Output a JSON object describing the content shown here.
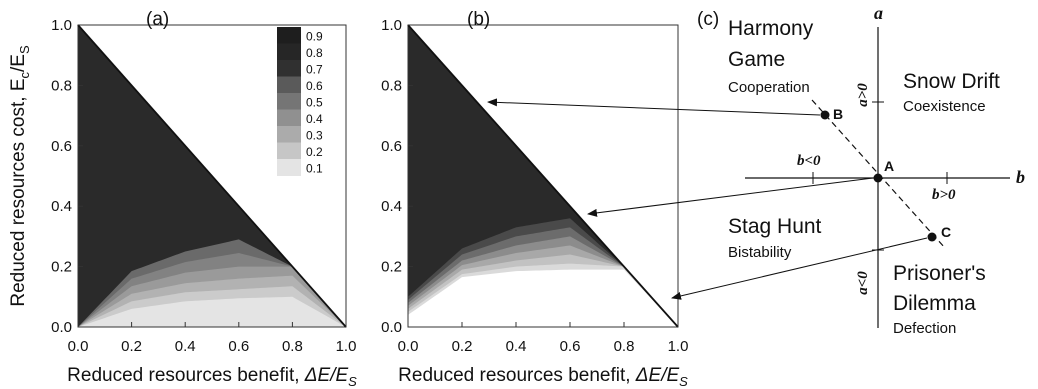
{
  "panels": {
    "a": {
      "label": "(a)"
    },
    "b": {
      "label": "(b)"
    },
    "c": {
      "label": "(c)"
    }
  },
  "axes": {
    "y_label": "Reduced resources cost, E",
    "y_label_sub": "c",
    "y_label_tail": "/E",
    "y_label_tail_sub": "S",
    "x_label_a": "Reduced resources benefit, ",
    "x_label_b": "Reduced resources benefit, ",
    "x_label_math": "ΔE/E",
    "x_label_math_sub": "S",
    "x_ticks": [
      "0.0",
      "0.2",
      "0.4",
      "0.6",
      "0.8",
      "1.0"
    ],
    "y_ticks": [
      "0.0",
      "0.2",
      "0.4",
      "0.6",
      "0.8",
      "1.0"
    ]
  },
  "legend": {
    "levels": [
      "0.9",
      "0.8",
      "0.7",
      "0.6",
      "0.5",
      "0.4",
      "0.3",
      "0.2",
      "0.1"
    ],
    "colors": [
      "#1e1e1e",
      "#262626",
      "#303030",
      "#5a5a5a",
      "#757575",
      "#909090",
      "#ababab",
      "#c6c6c6",
      "#e4e4e4"
    ]
  },
  "chart_data": [
    {
      "type": "heatmap",
      "panel": "(a)",
      "x_range": [
        0,
        1
      ],
      "y_range": [
        0,
        1
      ],
      "domain": "triangle below y = 1 - x",
      "contour_levels": [
        0.1,
        0.2,
        0.3,
        0.4,
        0.5,
        0.6,
        0.7,
        0.8,
        0.9
      ],
      "band_colors": [
        "#e4e4e4",
        "#cbcbcb",
        "#b2b2b2",
        "#9a9a9a",
        "#828282",
        "#6a6a6a",
        "#2a2a2a"
      ],
      "boundary_heights_at_x": {
        "x": [
          0.0,
          0.2,
          0.4,
          0.6,
          0.8,
          1.0
        ],
        "level_0.7": [
          0.0,
          0.185,
          0.25,
          0.29,
          0.2,
          0.0
        ],
        "level_0.6": [
          0.0,
          0.16,
          0.215,
          0.245,
          0.2,
          0.0
        ],
        "level_0.5": [
          0.0,
          0.135,
          0.18,
          0.2,
          0.2,
          0.0
        ],
        "level_0.4": [
          0.0,
          0.11,
          0.145,
          0.16,
          0.17,
          0.0
        ],
        "level_0.3": [
          0.0,
          0.085,
          0.115,
          0.125,
          0.135,
          0.0
        ],
        "level_0.2": [
          0.0,
          0.06,
          0.085,
          0.095,
          0.1,
          0.0
        ],
        "level_0.1": [
          0.0,
          0.035,
          0.05,
          0.06,
          0.065,
          0.0
        ]
      }
    },
    {
      "type": "heatmap",
      "panel": "(b)",
      "x_range": [
        0,
        1
      ],
      "y_range": [
        0,
        1
      ],
      "domain": "triangle below y = 1 - x",
      "contour_levels": [
        0.1,
        0.2,
        0.3,
        0.4,
        0.5,
        0.6,
        0.7,
        0.8,
        0.9
      ],
      "band_colors": [
        "#ffffff",
        "#dadada",
        "#c2c2c2",
        "#a8a8a8",
        "#8c8c8c",
        "#6c6c6c",
        "#4a4a4a",
        "#2a2a2a"
      ],
      "boundary_heights_at_x": {
        "x": [
          0.0,
          0.2,
          0.4,
          0.6,
          0.8,
          1.0
        ],
        "level_0.9": [
          0.1,
          0.26,
          0.33,
          0.36,
          0.2,
          0.0
        ],
        "level_0.8": [
          0.09,
          0.24,
          0.3,
          0.33,
          0.2,
          0.0
        ],
        "level_0.7": [
          0.08,
          0.22,
          0.27,
          0.3,
          0.2,
          0.0
        ],
        "level_0.6": [
          0.07,
          0.205,
          0.245,
          0.27,
          0.2,
          0.0
        ],
        "level_0.5": [
          0.06,
          0.19,
          0.22,
          0.24,
          0.2,
          0.0
        ],
        "level_0.4": [
          0.05,
          0.175,
          0.2,
          0.21,
          0.2,
          0.0
        ],
        "level_0.3": [
          0.04,
          0.165,
          0.185,
          0.19,
          0.19,
          0.0
        ]
      }
    },
    {
      "type": "diagram",
      "panel": "(c)",
      "axes": {
        "x": "b",
        "y": "a"
      },
      "axis_annotations": {
        "a_pos": "a>0",
        "a_neg": "a<0",
        "b_neg": "b<0",
        "b_pos": "b>0"
      },
      "quadrants": [
        {
          "name": "Harmony Game",
          "name_line1": "Harmony",
          "name_line2": "Game",
          "desc": "Cooperation"
        },
        {
          "name": "Snow Drift",
          "desc": "Coexistence"
        },
        {
          "name": "Stag Hunt",
          "desc": "Bistability"
        },
        {
          "name": "Prisoner's Dilemma",
          "name_line1": "Prisoner's",
          "name_line2": "Dilemma",
          "desc": "Defection"
        }
      ],
      "points": [
        "A",
        "B",
        "C"
      ]
    }
  ]
}
